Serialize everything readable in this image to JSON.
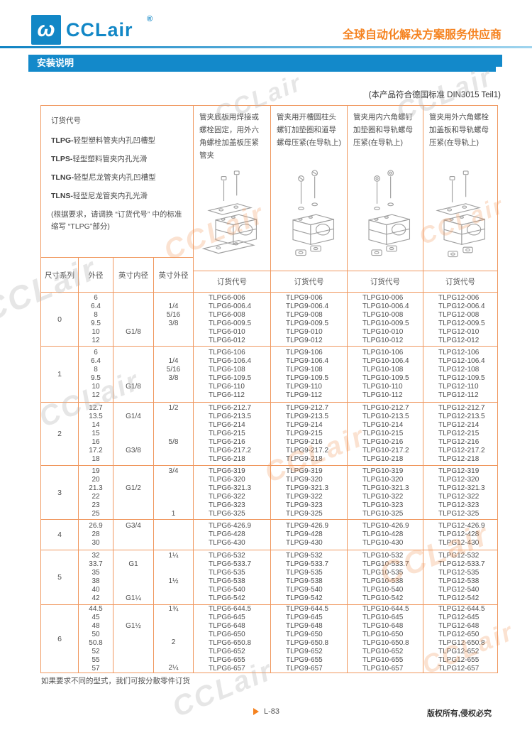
{
  "brand": {
    "logo_glyph": "ω",
    "logo_text": "CCLair",
    "reg": "®",
    "tagline": "全球自动化解决方案服务供应商"
  },
  "banner": {
    "title": "安装说明"
  },
  "standard_note": "(本产品符合德国标准 DIN3015  Teil1)",
  "info": {
    "title": "订货代号",
    "models": [
      {
        "code": "TLPG-",
        "desc": "轻型塑料管夹内孔凹槽型"
      },
      {
        "code": "TLPS-",
        "desc": "轻型塑料管夹内孔光滑"
      },
      {
        "code": "TLNG-",
        "desc": "轻型尼龙管夹内孔凹槽型"
      },
      {
        "code": "TLNS-",
        "desc": "轻型尼龙管夹内孔光滑"
      }
    ],
    "note": "(根据要求，请调换 “订货代号” 中的标准缩写 “TLPG”部分)"
  },
  "columns": {
    "size_series": "尺寸系列",
    "od": "外径",
    "inch_id": "英寸内径",
    "inch_od": "英寸外径",
    "order_code": "订货代号"
  },
  "products": [
    {
      "desc": "管夹底板用焊接或螺栓固定，用外六角螺栓加盖板压紧管夹",
      "icon": "clamp-exploded-weld-base"
    },
    {
      "desc": "管夹用开槽圆柱头螺钉加垫圈和道导螺母压紧(在导轨上)",
      "icon": "clamp-exploded-slot-screw-rail"
    },
    {
      "desc": "管夹用内六角螺钉加垫圈和导轨螺母压紧(在导轨上)",
      "icon": "clamp-exploded-socket-screw-rail"
    },
    {
      "desc": "管夹用外六角螺栓加盖板和导轨螺母压紧(在导轨上)",
      "icon": "clamp-exploded-hex-bolt-rail"
    }
  ],
  "table": {
    "groups": [
      {
        "series": "0",
        "od": [
          "6",
          "6.4",
          "8",
          "9.5",
          "10",
          "12"
        ],
        "inch_in": [
          "",
          "",
          "",
          "",
          "G1/8",
          ""
        ],
        "inch_out": [
          "",
          "1/4",
          "5/16",
          "3/8",
          "",
          ""
        ],
        "codes": [
          [
            "TLPG6-006",
            "TLPG6-006.4",
            "TLPG6-008",
            "TLPG6-009.5",
            "TLPG6-010",
            "TLPG6-012"
          ],
          [
            "TLPG9-006",
            "TLPG9-006.4",
            "TLPG9-008",
            "TLPG9-009.5",
            "TLPG9-010",
            "TLPG9-012"
          ],
          [
            "TLPG10-006",
            "TLPG10-006.4",
            "TLPG10-008",
            "TLPG10-009.5",
            "TLPG10-010",
            "TLPG10-012"
          ],
          [
            "TLPG12-006",
            "TLPG12-006.4",
            "TLPG12-008",
            "TLPG12-009.5",
            "TLPG12-010",
            "TLPG12-012"
          ]
        ]
      },
      {
        "series": "1",
        "od": [
          "6",
          "6.4",
          "8",
          "9.5",
          "10",
          "12"
        ],
        "inch_in": [
          "",
          "",
          "",
          "",
          "G1/8",
          ""
        ],
        "inch_out": [
          "",
          "1/4",
          "5/16",
          "3/8",
          "",
          ""
        ],
        "codes": [
          [
            "TLPG6-106",
            "TLPG6-106.4",
            "TLPG6-108",
            "TLPG6-109.5",
            "TLPG6-110",
            "TLPG6-112"
          ],
          [
            "TLPG9-106",
            "TLPG9-106.4",
            "TLPG9-108",
            "TLPG9-109.5",
            "TLPG9-110",
            "TLPG9-112"
          ],
          [
            "TLPG10-106",
            "TLPG10-106.4",
            "TLPG10-108",
            "TLPG10-109.5",
            "TLPG10-110",
            "TLPG10-112"
          ],
          [
            "TLPG12-106",
            "TLPG12-106.4",
            "TLPG12-108",
            "TLPG12-109.5",
            "TLPG12-110",
            "TLPG12-112"
          ]
        ]
      },
      {
        "series": "2",
        "od": [
          "12.7",
          "13.5",
          "14",
          "15",
          "16",
          "17.2",
          "18"
        ],
        "inch_in": [
          "",
          "G1/4",
          "",
          "",
          "",
          "G3/8",
          ""
        ],
        "inch_out": [
          "1/2",
          "",
          "",
          "",
          "5/8",
          "",
          ""
        ],
        "codes": [
          [
            "TLPG6-212.7",
            "TLPG6-213.5",
            "TLPG6-214",
            "TLPG6-215",
            "TLPG6-216",
            "TLPG6-217.2",
            "TLPG6-218"
          ],
          [
            "TLPG9-212.7",
            "TLPG9-213.5",
            "TLPG9-214",
            "TLPG9-215",
            "TLPG9-216",
            "TLPG9-217.2",
            "TLPG9-218"
          ],
          [
            "TLPG10-212.7",
            "TLPG10-213.5",
            "TLPG10-214",
            "TLPG10-215",
            "TLPG10-216",
            "TLPG10-217.2",
            "TLPG10-218"
          ],
          [
            "TLPG12-212.7",
            "TLPG12-213.5",
            "TLPG12-214",
            "TLPG12-215",
            "TLPG12-216",
            "TLPG12-217.2",
            "TLPG12-218"
          ]
        ]
      },
      {
        "series": "3",
        "od": [
          "19",
          "20",
          "21.3",
          "22",
          "23",
          "25"
        ],
        "inch_in": [
          "",
          "",
          "G1/2",
          "",
          "",
          ""
        ],
        "inch_out": [
          "3/4",
          "",
          "",
          "",
          "",
          "1"
        ],
        "codes": [
          [
            "TLPG6-319",
            "TLPG6-320",
            "TLPG6-321.3",
            "TLPG6-322",
            "TLPG6-323",
            "TLPG6-325"
          ],
          [
            "TLPG9-319",
            "TLPG9-320",
            "TLPG9-321.3",
            "TLPG9-322",
            "TLPG9-323",
            "TLPG9-325"
          ],
          [
            "TLPG10-319",
            "TLPG10-320",
            "TLPG10-321.3",
            "TLPG10-322",
            "TLPG10-323",
            "TLPG10-325"
          ],
          [
            "TLPG12-319",
            "TLPG12-320",
            "TLPG12-321.3",
            "TLPG12-322",
            "TLPG12-323",
            "TLPG12-325"
          ]
        ]
      },
      {
        "series": "4",
        "od": [
          "26.9",
          "28",
          "30"
        ],
        "inch_in": [
          "G3/4",
          "",
          ""
        ],
        "inch_out": [
          "",
          "",
          ""
        ],
        "codes": [
          [
            "TLPG6-426.9",
            "TLPG6-428",
            "TLPG6-430"
          ],
          [
            "TLPG9-426.9",
            "TLPG9-428",
            "TLPG9-430"
          ],
          [
            "TLPG10-426.9",
            "TLPG10-428",
            "TLPG10-430"
          ],
          [
            "TLPG12-426.9",
            "TLPG12-428",
            "TLPG12-430"
          ]
        ]
      },
      {
        "series": "5",
        "od": [
          "32",
          "33.7",
          "35",
          "38",
          "40",
          "42"
        ],
        "inch_in": [
          "",
          "G1",
          "",
          "",
          "",
          "G1¼"
        ],
        "inch_out": [
          "1¼",
          "",
          "",
          "1½",
          "",
          ""
        ],
        "codes": [
          [
            "TLPG6-532",
            "TLPG6-533.7",
            "TLPG6-535",
            "TLPG6-538",
            "TLPG6-540",
            "TLPG6-542"
          ],
          [
            "TLPG9-532",
            "TLPG9-533.7",
            "TLPG9-535",
            "TLPG9-538",
            "TLPG9-540",
            "TLPG9-542"
          ],
          [
            "TLPG10-532",
            "TLPG10-533.7",
            "TLPG10-535",
            "TLPG10-538",
            "TLPG10-540",
            "TLPG10-542"
          ],
          [
            "TLPG12-532",
            "TLPG12-533.7",
            "TLPG12-535",
            "TLPG12-538",
            "TLPG12-540",
            "TLPG12-542"
          ]
        ]
      },
      {
        "series": "6",
        "od": [
          "44.5",
          "45",
          "48",
          "50",
          "50.8",
          "52",
          "55",
          "57"
        ],
        "inch_in": [
          "",
          "",
          "G1½",
          "",
          "",
          "",
          "",
          ""
        ],
        "inch_out": [
          "1¾",
          "",
          "",
          "",
          "2",
          "",
          "",
          "2¼"
        ],
        "codes": [
          [
            "TLPG6-644.5",
            "TLPG6-645",
            "TLPG6-648",
            "TLPG6-650",
            "TLPG6-650.8",
            "TLPG6-652",
            "TLPG6-655",
            "TLPG6-657"
          ],
          [
            "TLPG9-644.5",
            "TLPG9-645",
            "TLPG9-648",
            "TLPG9-650",
            "TLPG9-650.8",
            "TLPG9-652",
            "TLPG9-655",
            "TLPG9-657"
          ],
          [
            "TLPG10-644.5",
            "TLPG10-645",
            "TLPG10-648",
            "TLPG10-650",
            "TLPG10-650.8",
            "TLPG10-652",
            "TLPG10-655",
            "TLPG10-657"
          ],
          [
            "TLPG12-644.5",
            "TLPG12-645",
            "TLPG12-648",
            "TLPG12-650",
            "TLPG12-650.8",
            "TLPG12-652",
            "TLPG12-655",
            "TLPG12-657"
          ]
        ]
      }
    ]
  },
  "footnote": "如果要求不同的型式，我们可按分散零件订货",
  "footer": {
    "page": "L-83",
    "copyright": "版权所有,侵权必究"
  },
  "colors": {
    "brand_blue": "#1287c6",
    "banner_blue": "#1389ca",
    "accent_orange": "#f5821f",
    "table_border_orange": "#f0985f"
  }
}
